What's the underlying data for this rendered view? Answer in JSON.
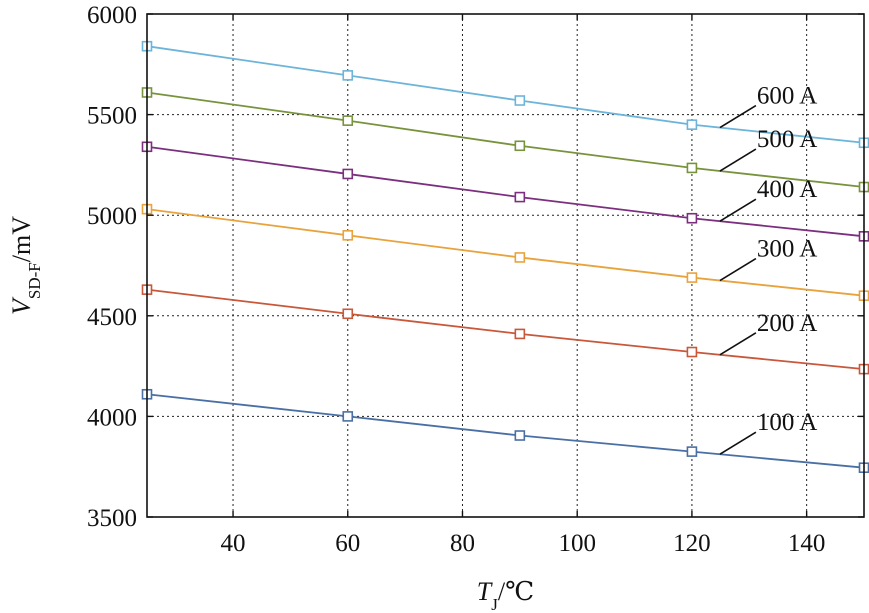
{
  "chart_data": {
    "type": "line",
    "xlabel": {
      "main": "T",
      "sub": "J",
      "unit": "/℃"
    },
    "ylabel": {
      "main": "V",
      "sub": "SD-F",
      "unit": "/mV"
    },
    "xlim": [
      25,
      150
    ],
    "ylim": [
      3500,
      6000
    ],
    "xticks": [
      40,
      60,
      80,
      100,
      120,
      140
    ],
    "yticks": [
      3500,
      4000,
      4500,
      5000,
      5500,
      6000
    ],
    "x": [
      25,
      60,
      90,
      120,
      150
    ],
    "grid": true,
    "marker": "square",
    "series": [
      {
        "name": "100 A",
        "color": "#4a6fa5",
        "values": [
          4110,
          4000,
          3905,
          3825,
          3745
        ]
      },
      {
        "name": "200 A",
        "color": "#c9573a",
        "values": [
          4630,
          4510,
          4410,
          4320,
          4235
        ]
      },
      {
        "name": "300 A",
        "color": "#e8a33d",
        "values": [
          5030,
          4900,
          4790,
          4690,
          4600
        ]
      },
      {
        "name": "400 A",
        "color": "#7b2f7e",
        "values": [
          5340,
          5205,
          5090,
          4985,
          4895
        ]
      },
      {
        "name": "500 A",
        "color": "#77933c",
        "values": [
          5610,
          5470,
          5345,
          5235,
          5140
        ]
      },
      {
        "name": "600 A",
        "color": "#6cb4d9",
        "values": [
          5840,
          5695,
          5570,
          5450,
          5360
        ]
      }
    ],
    "annotations": [
      {
        "text": "100 A",
        "series": "100 A",
        "x": 120,
        "y": 3825
      },
      {
        "text": "200 A",
        "series": "200 A",
        "x": 120,
        "y": 4320
      },
      {
        "text": "300 A",
        "series": "300 A",
        "x": 120,
        "y": 4690
      },
      {
        "text": "400 A",
        "series": "400 A",
        "x": 120,
        "y": 4985
      },
      {
        "text": "500 A",
        "series": "500 A",
        "x": 120,
        "y": 5235
      },
      {
        "text": "600 A",
        "series": "600 A",
        "x": 120,
        "y": 5450
      }
    ]
  }
}
